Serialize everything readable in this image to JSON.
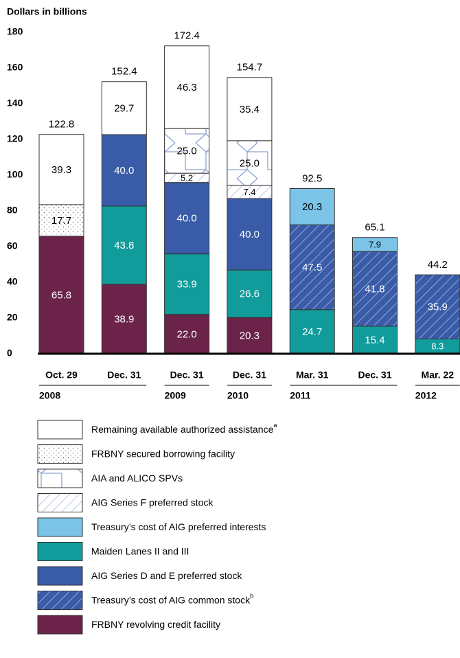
{
  "chart_data": {
    "type": "bar",
    "stacked": true,
    "y_label": "Dollars in billions",
    "categories": [
      "Oct. 29",
      "Dec. 31",
      "Dec. 31",
      "Dec. 31",
      "Mar. 31",
      "Dec. 31",
      "Mar. 22"
    ],
    "category_years": [
      "2008",
      null,
      "2009",
      "2010",
      "2011",
      null,
      "2012"
    ],
    "totals": [
      122.8,
      152.4,
      172.4,
      154.7,
      92.5,
      65.1,
      44.2
    ],
    "ylim": [
      0,
      180
    ],
    "yticks": [
      0,
      20,
      40,
      60,
      80,
      100,
      120,
      140,
      160,
      180
    ],
    "series": [
      {
        "name": "Remaining available authorized assistance",
        "footnote": "a",
        "color": "#ffffff",
        "pattern": "none",
        "label_color": "#000000",
        "values": [
          39.3,
          29.7,
          46.3,
          35.4,
          null,
          null,
          null
        ],
        "value_labels": [
          "39.3",
          "29.7",
          "46.3",
          "35.4",
          null,
          null,
          null
        ]
      },
      {
        "name": "FRBNY secured borrowing facility",
        "color": "#ffffff",
        "pattern": "dots",
        "label_color": "#000000",
        "values": [
          17.7,
          null,
          null,
          null,
          null,
          null,
          null
        ],
        "value_labels": [
          "17.7",
          null,
          null,
          null,
          null,
          null,
          null
        ]
      },
      {
        "name": "AIA and ALICO SPVs",
        "color": "#ffffff",
        "pattern": "hex",
        "label_color": "#000000",
        "values": [
          null,
          null,
          25.0,
          25.0,
          null,
          null,
          null
        ],
        "value_labels": [
          null,
          null,
          "25.0",
          "25.0",
          null,
          null,
          null
        ]
      },
      {
        "name": "AIG Series F preferred stock",
        "color": "#ffffff",
        "pattern": "hatch",
        "label_color": "#000000",
        "values": [
          null,
          null,
          5.2,
          7.4,
          null,
          null,
          null
        ],
        "value_labels": [
          null,
          null,
          "5.2",
          "7.4",
          null,
          null,
          null
        ]
      },
      {
        "name": "Treasury’s cost of AIG preferred interests",
        "color": "#7cc3e8",
        "pattern": "none",
        "label_color": "#000000",
        "values": [
          null,
          null,
          null,
          null,
          20.3,
          7.9,
          null
        ],
        "value_labels": [
          null,
          null,
          null,
          null,
          "20.3",
          "7.9",
          null
        ]
      },
      {
        "name": "Maiden Lanes II and III",
        "color": "#129b9b",
        "pattern": "none",
        "label_color": "#ffffff",
        "values": [
          null,
          43.8,
          33.9,
          26.6,
          24.7,
          15.4,
          8.3
        ],
        "value_labels": [
          null,
          "43.8",
          "33.9",
          "26.6",
          "24.7",
          "15.4",
          "8.3"
        ]
      },
      {
        "name": "AIG Series D and E preferred stock",
        "color": "#3a5ca8",
        "pattern": "none",
        "label_color": "#ffffff",
        "values": [
          null,
          40.0,
          40.0,
          40.0,
          null,
          null,
          null
        ],
        "value_labels": [
          null,
          "40.0",
          "40.0",
          "40.0",
          null,
          null,
          null
        ]
      },
      {
        "name": "Treasury’s cost of AIG common stock",
        "footnote": "b",
        "color": "#3a5ca8",
        "pattern": "hatch",
        "label_color": "#ffffff",
        "values": [
          null,
          null,
          null,
          null,
          47.5,
          41.8,
          35.9
        ],
        "value_labels": [
          null,
          null,
          null,
          null,
          "47.5",
          "41.8",
          "35.9"
        ]
      },
      {
        "name": "FRBNY revolving credit facility",
        "color": "#6b2349",
        "pattern": "none",
        "label_color": "#ffffff",
        "values": [
          65.8,
          38.9,
          22.0,
          20.3,
          null,
          null,
          null
        ],
        "value_labels": [
          "65.8",
          "38.9",
          "22.0",
          "20.3",
          null,
          null,
          null
        ]
      }
    ]
  }
}
